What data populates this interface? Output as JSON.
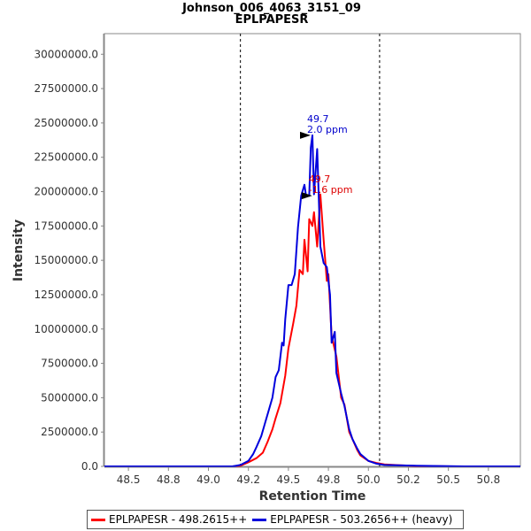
{
  "chart_data": {
    "type": "line",
    "title": "Johnson_006_4063_3151_09",
    "subtitle": "EPLPAPESR",
    "xlabel": "Retention Time",
    "ylabel": "Intensity",
    "xlim": [
      48.35,
      50.95
    ],
    "ylim": [
      0,
      31500000
    ],
    "x_ticks": [
      "48.5",
      "48.8",
      "49.0",
      "49.2",
      "49.5",
      "49.8",
      "50.0",
      "50.2",
      "50.5",
      "50.8"
    ],
    "x_tick_values": [
      48.5,
      48.75,
      49.0,
      49.25,
      49.5,
      49.75,
      50.0,
      50.25,
      50.5,
      50.75
    ],
    "y_ticks": [
      "0.0",
      "2500000.0",
      "5000000.0",
      "7500000.0",
      "10000000.0",
      "12500000.0",
      "15000000.0",
      "17500000.0",
      "20000000.0",
      "22500000.0",
      "25000000.0",
      "27500000.0",
      "30000000.0"
    ],
    "y_tick_values": [
      0,
      2500000,
      5000000,
      7500000,
      10000000,
      12500000,
      15000000,
      17500000,
      20000000,
      22500000,
      25000000,
      27500000,
      30000000
    ],
    "vlines": [
      49.2,
      50.07
    ],
    "series": [
      {
        "name": "EPLPAPESR - 498.2615++",
        "color": "#ff0000",
        "points": [
          [
            48.35,
            0
          ],
          [
            49.15,
            0
          ],
          [
            49.2,
            50000
          ],
          [
            49.25,
            300000
          ],
          [
            49.3,
            600000
          ],
          [
            49.34,
            1000000
          ],
          [
            49.37,
            1800000
          ],
          [
            49.4,
            2700000
          ],
          [
            49.42,
            3500000
          ],
          [
            49.45,
            4600000
          ],
          [
            49.48,
            6600000
          ],
          [
            49.5,
            8600000
          ],
          [
            49.53,
            10400000
          ],
          [
            49.55,
            11700000
          ],
          [
            49.57,
            14300000
          ],
          [
            49.59,
            14000000
          ],
          [
            49.6,
            16500000
          ],
          [
            49.62,
            14200000
          ],
          [
            49.63,
            18000000
          ],
          [
            49.65,
            17500000
          ],
          [
            49.66,
            18500000
          ],
          [
            49.68,
            16000000
          ],
          [
            49.7,
            19800000
          ],
          [
            49.72,
            16500000
          ],
          [
            49.74,
            13500000
          ],
          [
            49.75,
            14000000
          ],
          [
            49.77,
            9500000
          ],
          [
            49.8,
            8000000
          ],
          [
            49.83,
            5000000
          ],
          [
            49.85,
            4500000
          ],
          [
            49.88,
            2500000
          ],
          [
            49.9,
            2000000
          ],
          [
            49.93,
            1200000
          ],
          [
            49.95,
            800000
          ],
          [
            50.0,
            400000
          ],
          [
            50.05,
            250000
          ],
          [
            50.1,
            150000
          ],
          [
            50.2,
            80000
          ],
          [
            50.3,
            30000
          ],
          [
            50.5,
            0
          ],
          [
            50.95,
            0
          ]
        ]
      },
      {
        "name": "EPLPAPESR - 503.2656++ (heavy)",
        "color": "#0000dd",
        "points": [
          [
            48.35,
            0
          ],
          [
            49.15,
            0
          ],
          [
            49.2,
            100000
          ],
          [
            49.25,
            400000
          ],
          [
            49.28,
            900000
          ],
          [
            49.3,
            1400000
          ],
          [
            49.33,
            2200000
          ],
          [
            49.35,
            3000000
          ],
          [
            49.38,
            4200000
          ],
          [
            49.4,
            5000000
          ],
          [
            49.42,
            6500000
          ],
          [
            49.44,
            7000000
          ],
          [
            49.46,
            9000000
          ],
          [
            49.47,
            8800000
          ],
          [
            49.48,
            10700000
          ],
          [
            49.5,
            13200000
          ],
          [
            49.52,
            13200000
          ],
          [
            49.54,
            14000000
          ],
          [
            49.56,
            17400000
          ],
          [
            49.58,
            19700000
          ],
          [
            49.6,
            20500000
          ],
          [
            49.61,
            19700000
          ],
          [
            49.63,
            19700000
          ],
          [
            49.64,
            23200000
          ],
          [
            49.65,
            24100000
          ],
          [
            49.66,
            19800000
          ],
          [
            49.68,
            23100000
          ],
          [
            49.7,
            16000000
          ],
          [
            49.72,
            14800000
          ],
          [
            49.74,
            14500000
          ],
          [
            49.76,
            12500000
          ],
          [
            49.77,
            9000000
          ],
          [
            49.79,
            9800000
          ],
          [
            49.8,
            6800000
          ],
          [
            49.83,
            5300000
          ],
          [
            49.85,
            4400000
          ],
          [
            49.88,
            2700000
          ],
          [
            49.9,
            2000000
          ],
          [
            49.93,
            1300000
          ],
          [
            49.95,
            900000
          ],
          [
            50.0,
            400000
          ],
          [
            50.05,
            200000
          ],
          [
            50.1,
            100000
          ],
          [
            50.3,
            50000
          ],
          [
            50.6,
            0
          ],
          [
            50.95,
            0
          ]
        ]
      }
    ],
    "annotations": [
      {
        "label": "49.7",
        "sublabel": "2.0 ppm",
        "x": 49.65,
        "y": 24100000,
        "color": "#0000cc"
      },
      {
        "label": "49.7",
        "sublabel": "-1.6 ppm",
        "x": 49.66,
        "y": 19700000,
        "color": "#dd0000"
      }
    ],
    "legend": {
      "placement": "bottom"
    }
  }
}
